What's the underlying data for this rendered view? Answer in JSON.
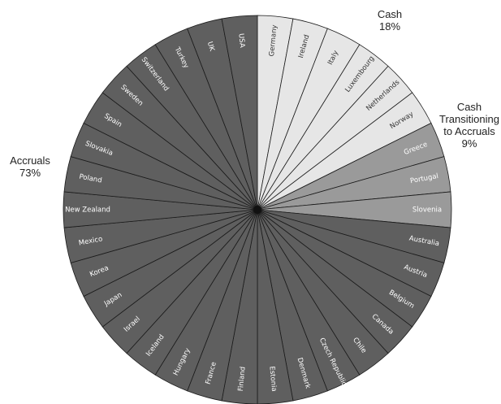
{
  "chart_data": {
    "type": "pie",
    "categories": [
      "Germany",
      "Ireland",
      "Italy",
      "Luxembourg",
      "Netherlands",
      "Norway",
      "Greece",
      "Portugal",
      "Slovenia",
      "Australia",
      "Austria",
      "Belgium",
      "Canada",
      "Chile",
      "Czech Republic",
      "Denmark",
      "Estonia",
      "Finland",
      "France",
      "Hungary",
      "Iceland",
      "Israel",
      "Japan",
      "Korea",
      "Mexico",
      "New Zealand",
      "Poland",
      "Slovakia",
      "Spain",
      "Sweden",
      "Switzerland",
      "Turkey",
      "UK",
      "USA"
    ],
    "groups": [
      {
        "name": "Cash",
        "percent": "18%",
        "count": 6,
        "color": "#e6e6e6",
        "text_color": "#333333"
      },
      {
        "name": "Cash Transitioning to Accruals",
        "percent": "9%",
        "count": 3,
        "color": "#9a9a9a",
        "text_color": "#ffffff"
      },
      {
        "name": "Accruals",
        "percent": "73%",
        "count": 25,
        "color": "#5f5f5f",
        "text_color": "#ffffff"
      }
    ],
    "values": [
      1,
      1,
      1,
      1,
      1,
      1,
      1,
      1,
      1,
      1,
      1,
      1,
      1,
      1,
      1,
      1,
      1,
      1,
      1,
      1,
      1,
      1,
      1,
      1,
      1,
      1,
      1,
      1,
      1,
      1,
      1,
      1,
      1,
      1
    ],
    "title": "",
    "legend": "none"
  },
  "labels": {
    "cash_line1": "Cash",
    "cash_line2": "18%",
    "transition_line1": "Cash",
    "transition_line2": "Transitioning",
    "transition_line3": "to Accruals",
    "transition_line4": "9%",
    "accruals_line1": "Accruals",
    "accruals_line2": "73%"
  }
}
